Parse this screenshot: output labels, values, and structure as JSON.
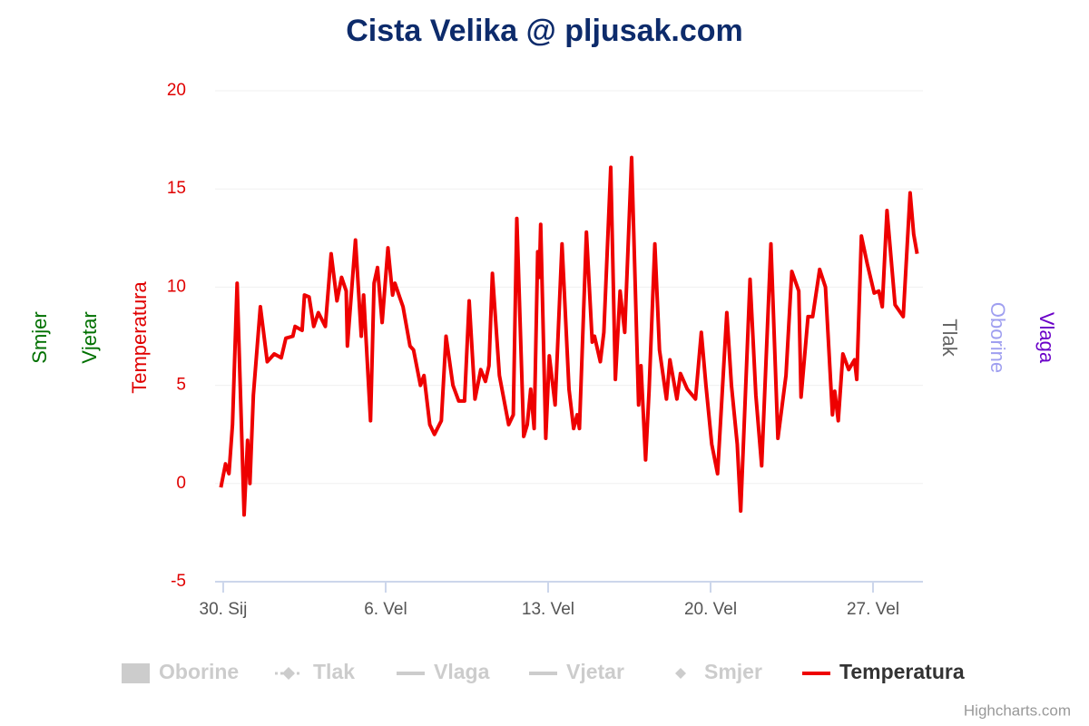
{
  "chart_data": {
    "type": "line",
    "title": "Cista Velika @ pljusak.com",
    "credits": "Highcharts.com",
    "axis_titles": [
      {
        "text": "Smjer",
        "side": "left",
        "color": "#007000"
      },
      {
        "text": "Vjetar",
        "side": "left",
        "color": "#007000"
      },
      {
        "text": "Temperatura",
        "side": "left",
        "color": "#e00000"
      },
      {
        "text": "Tlak",
        "side": "right",
        "color": "#666666"
      },
      {
        "text": "Oborine",
        "side": "right",
        "color": "#9f9ff0"
      },
      {
        "text": "Vlaga",
        "side": "right",
        "color": "#6a00c8"
      }
    ],
    "xlim": [
      -0.35,
      30.15
    ],
    "xticks": [
      {
        "value": 0,
        "label": "30. Sij"
      },
      {
        "value": 7,
        "label": "6. Vel"
      },
      {
        "value": 14,
        "label": "13. Vel"
      },
      {
        "value": 21,
        "label": "20. Vel"
      },
      {
        "value": 28,
        "label": "27. Vel"
      }
    ],
    "ylim": [
      -5,
      20
    ],
    "yticks": [
      -5,
      0,
      5,
      10,
      15,
      20
    ],
    "grid": true,
    "x": [
      -0.1,
      0.1,
      0.25,
      0.4,
      0.6,
      0.9,
      1.05,
      1.15,
      1.3,
      1.6,
      1.9,
      2.2,
      2.5,
      2.7,
      3.0,
      3.1,
      3.4,
      3.5,
      3.7,
      3.9,
      4.1,
      4.4,
      4.65,
      4.9,
      5.1,
      5.3,
      5.35,
      5.7,
      5.95,
      6.05,
      6.35,
      6.5,
      6.65,
      6.85,
      7.1,
      7.3,
      7.4,
      7.6,
      7.75,
      8.05,
      8.2,
      8.5,
      8.65,
      8.9,
      9.1,
      9.4,
      9.6,
      9.9,
      10.15,
      10.4,
      10.6,
      10.85,
      11.1,
      11.3,
      11.45,
      11.6,
      11.9,
      12.3,
      12.5,
      12.65,
      12.95,
      13.1,
      13.25,
      13.4,
      13.55,
      13.62,
      13.68,
      13.9,
      14.05,
      14.3,
      14.6,
      14.9,
      15.1,
      15.25,
      15.35,
      15.65,
      15.9,
      16.0,
      16.25,
      16.4,
      16.7,
      16.9,
      17.1,
      17.3,
      17.6,
      17.9,
      18.0,
      18.2,
      18.35,
      18.6,
      18.8,
      19.1,
      19.25,
      19.55,
      19.7,
      20.0,
      20.35,
      20.6,
      20.8,
      21.05,
      21.3,
      21.7,
      21.9,
      22.15,
      22.3,
      22.7,
      22.95,
      23.2,
      23.6,
      23.9,
      24.25,
      24.5,
      24.8,
      24.9,
      25.2,
      25.4,
      25.7,
      25.95,
      26.25,
      26.35,
      26.5,
      26.7,
      26.95,
      27.2,
      27.3,
      27.5,
      27.75,
      28.05,
      28.25,
      28.4,
      28.6,
      28.95,
      29.3,
      29.6,
      29.75,
      29.9
    ],
    "series": [
      {
        "name": "Temperatura",
        "color": "#ee0000",
        "values": [
          -0.2,
          1,
          0.5,
          3,
          10.2,
          -1.6,
          2.2,
          0,
          4.5,
          9,
          6.2,
          6.6,
          6.4,
          7.4,
          7.5,
          8,
          7.8,
          9.6,
          9.5,
          8,
          8.7,
          8,
          11.7,
          9.3,
          10.5,
          9.8,
          7,
          12.4,
          7.5,
          9.6,
          3.2,
          10.2,
          11,
          8.2,
          12,
          9.6,
          10.2,
          9.5,
          9,
          7,
          6.8,
          5,
          5.5,
          3,
          2.5,
          3.2,
          7.5,
          5,
          4.2,
          4.2,
          9.3,
          4.3,
          5.8,
          5.2,
          6,
          10.7,
          5.5,
          3,
          3.5,
          13.5,
          2.4,
          3,
          4.8,
          2.8,
          11.8,
          10.5,
          13.2,
          2.3,
          6.5,
          4,
          12.2,
          4.8,
          2.8,
          3.5,
          2.8,
          12.8,
          7.2,
          7.5,
          6.2,
          7.7,
          16.1,
          5.3,
          9.8,
          7.7,
          16.6,
          4,
          6,
          1.2,
          4.7,
          12.2,
          6.8,
          4.3,
          6.3,
          4.3,
          5.6,
          4.8,
          4.3,
          7.7,
          5,
          2,
          0.5,
          8.7,
          5,
          2,
          -1.4,
          10.4,
          4.5,
          0.9,
          12.2,
          2.3,
          5.5,
          10.8,
          9.8,
          4.4,
          8.5,
          8.5,
          10.9,
          10,
          3.5,
          4.7,
          3.2,
          6.6,
          5.8,
          6.3,
          5.3,
          12.6,
          11.2,
          9.7,
          9.8,
          9,
          13.9,
          9.1,
          8.5,
          14.8,
          12.7,
          11.7
        ]
      }
    ],
    "legend": [
      {
        "name": "Oborine",
        "symbol": "rect",
        "visible": false
      },
      {
        "name": "Tlak",
        "symbol": "dash-diamond",
        "visible": false
      },
      {
        "name": "Vlaga",
        "symbol": "line",
        "visible": false
      },
      {
        "name": "Vjetar",
        "symbol": "line",
        "visible": false
      },
      {
        "name": "Smjer",
        "symbol": "diamond",
        "visible": false
      },
      {
        "name": "Temperatura",
        "symbol": "line",
        "visible": true,
        "color": "#ee0000"
      }
    ]
  }
}
